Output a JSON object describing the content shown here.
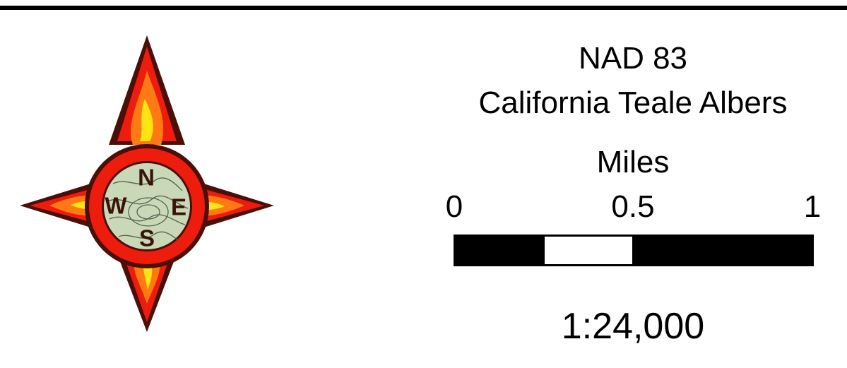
{
  "compass": {
    "north": "N",
    "east": "E",
    "south": "S",
    "west": "W"
  },
  "projection": {
    "datum": "NAD 83",
    "name": "California Teale Albers"
  },
  "scale_bar": {
    "unit": "Miles",
    "labels": [
      "0",
      "0.5",
      "1"
    ]
  },
  "scale_ratio": "1:24,000"
}
